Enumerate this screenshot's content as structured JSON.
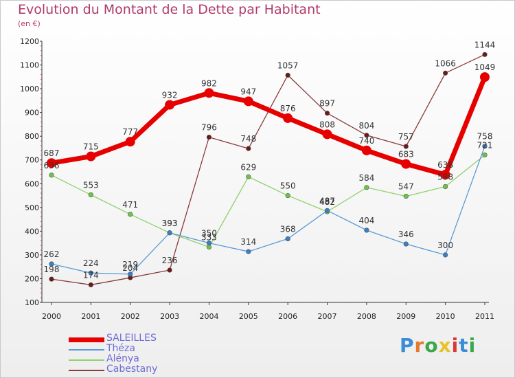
{
  "title": "Evolution du Montant de la Dette par Habitant",
  "subtitle": "(en €)",
  "logo": {
    "text": "Proxiti",
    "letter_colors": [
      "#3a8dd8",
      "#e8782a",
      "#3aa84a",
      "#e8c22a",
      "#d83a3a",
      "#3a8dd8",
      "#3aa84a"
    ]
  },
  "chart_data": {
    "type": "line",
    "categories": [
      "2000",
      "2001",
      "2002",
      "2003",
      "2004",
      "2005",
      "2006",
      "2007",
      "2008",
      "2009",
      "2010",
      "2011"
    ],
    "ylim": [
      100,
      1200
    ],
    "yticks": [
      100,
      200,
      300,
      400,
      500,
      600,
      700,
      800,
      900,
      1000,
      1100,
      1200
    ],
    "grid": false,
    "legend_position": "bottom-left",
    "series": [
      {
        "name": "SALEILLES",
        "color": "#e60000",
        "point_color": "#e60000",
        "values": [
          687,
          715,
          777,
          932,
          982,
          947,
          876,
          808,
          740,
          683,
          638,
          1049
        ]
      },
      {
        "name": "Théza",
        "color": "#5a9bd5",
        "point_color": "#3a7fc4",
        "values": [
          262,
          224,
          219,
          393,
          350,
          314,
          368,
          487,
          404,
          346,
          300,
          758
        ]
      },
      {
        "name": "Alénya",
        "color": "#8fd16a",
        "point_color": "#6fc24a",
        "values": [
          636,
          553,
          471,
          393,
          333,
          629,
          550,
          482,
          584,
          547,
          588,
          721
        ]
      },
      {
        "name": "Cabestany",
        "color": "#8b3a3a",
        "point_color": "#6b1a1a",
        "values": [
          198,
          174,
          204,
          236,
          796,
          748,
          1057,
          897,
          804,
          757,
          1066,
          1144
        ]
      }
    ]
  }
}
